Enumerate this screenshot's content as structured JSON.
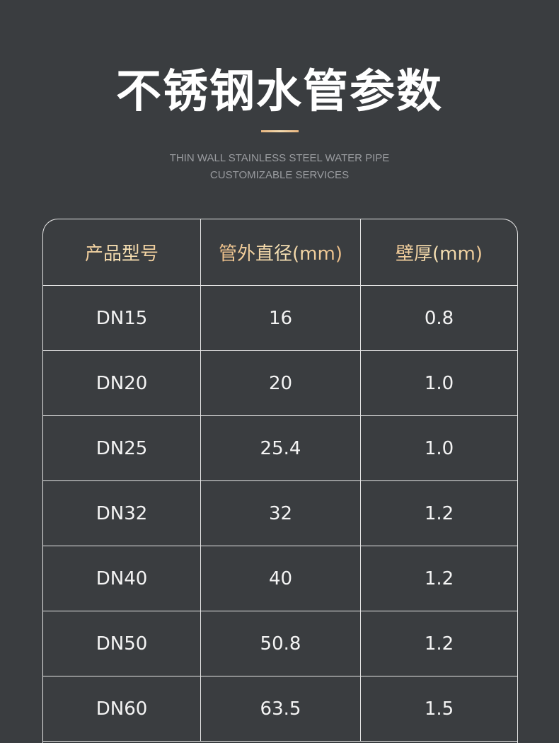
{
  "title": "不锈钢水管参数",
  "subtitle": [
    "THIN WALL STAINLESS STEEL WATER PIPE",
    "CUSTOMIZABLE SERVICES"
  ],
  "accent_color": "#e9b37a",
  "table": {
    "headers": [
      "产品型号",
      "管外直径(mm)",
      "壁厚(mm)"
    ],
    "rows": [
      [
        "DN15",
        "16",
        "0.8"
      ],
      [
        "DN20",
        "20",
        "1.0"
      ],
      [
        "DN25",
        "25.4",
        "1.0"
      ],
      [
        "DN32",
        "32",
        "1.2"
      ],
      [
        "DN40",
        "40",
        "1.2"
      ],
      [
        "DN50",
        "50.8",
        "1.2"
      ],
      [
        "DN60",
        "63.5",
        "1.5"
      ]
    ]
  }
}
